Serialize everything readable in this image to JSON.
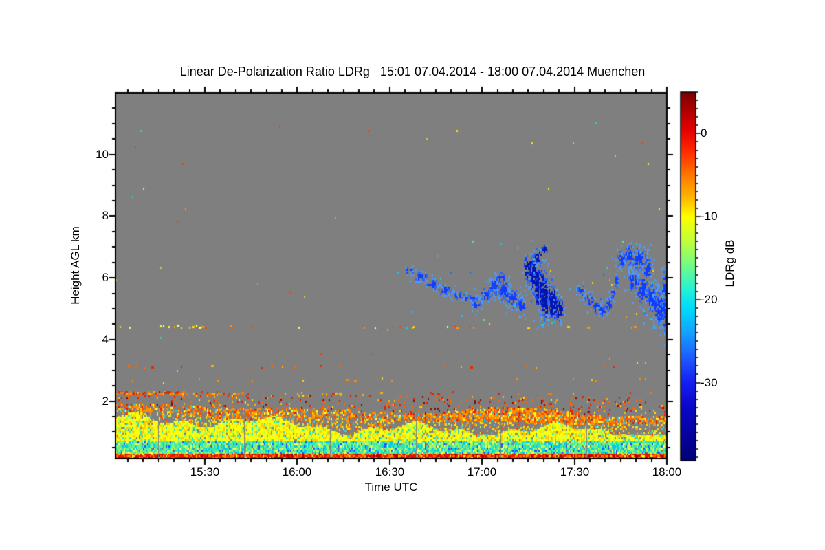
{
  "title": "Linear De-Polarization Ratio LDRg   15:01 07.04.2014 - 18:00 07.04.2014 Muenchen",
  "chart_data": {
    "type": "heatmap",
    "title": "Linear De-Polarization Ratio LDRg   15:01 07.04.2014 - 18:00 07.04.2014 Muenchen",
    "quantity": "Linear De-Polarization Ratio LDRg",
    "time_start": "15:01 07.04.2014",
    "time_end": "18:00 07.04.2014",
    "station": "Muenchen",
    "xlabel": "Time UTC",
    "ylabel": "Height AGL km",
    "colorbar_label": "LDRg dB",
    "x_minutes_range": [
      0,
      179
    ],
    "x_ticks": [
      {
        "t": 29,
        "label": "15:30"
      },
      {
        "t": 59,
        "label": "16:00"
      },
      {
        "t": 89,
        "label": "16:30"
      },
      {
        "t": 119,
        "label": "17:00"
      },
      {
        "t": 149,
        "label": "17:30"
      },
      {
        "t": 179,
        "label": "18:00"
      }
    ],
    "x_minor_tick_minutes": 5,
    "ylim_km": [
      0.14,
      12.0
    ],
    "y_ticks": [
      {
        "h": 2,
        "label": "2"
      },
      {
        "h": 4,
        "label": "4"
      },
      {
        "h": 6,
        "label": "6"
      },
      {
        "h": 8,
        "label": "8"
      },
      {
        "h": 10,
        "label": "10"
      }
    ],
    "y_minor_step_km": 0.5,
    "no_data_color": "#7f7f7f",
    "frame_color": "#000000",
    "colorbar": {
      "value_top": 5,
      "value_bottom": -39.4,
      "ticks": [
        {
          "v": 0,
          "label": "0"
        },
        {
          "v": -10,
          "label": "-10"
        },
        {
          "v": -20,
          "label": "-20"
        },
        {
          "v": -30,
          "label": "-30"
        }
      ],
      "minor_step_db": 1,
      "stops": [
        [
          5,
          "#7d0000"
        ],
        [
          0.5,
          "#e60000"
        ],
        [
          -2,
          "#ff2800"
        ],
        [
          -5,
          "#ff7800"
        ],
        [
          -8,
          "#ffbe00"
        ],
        [
          -10,
          "#ffff00"
        ],
        [
          -13,
          "#beff3c"
        ],
        [
          -16,
          "#6efa8c"
        ],
        [
          -19,
          "#1ef0dc"
        ],
        [
          -21,
          "#00dcfa"
        ],
        [
          -24,
          "#14a0ff"
        ],
        [
          -27,
          "#1e5aff"
        ],
        [
          -30,
          "#141ef0"
        ],
        [
          -33,
          "#0a05c8"
        ],
        [
          -39.4,
          "#000078"
        ]
      ]
    },
    "features": {
      "seed": 1337,
      "bands": [
        {
          "name": "ground-return-stripe",
          "h0": 0.17,
          "h1": 0.33,
          "density": 1.0,
          "palette": [
            [
              "#e61400",
              0.46
            ],
            [
              "#ff6e00",
              0.28
            ],
            [
              "#a00000",
              0.12
            ],
            [
              "#ffb400",
              0.08
            ],
            [
              "#ffff32",
              0.06
            ]
          ]
        },
        {
          "name": "surface-cyan-band",
          "h0": 0.33,
          "h1": 0.74,
          "density": 0.96,
          "palette": [
            [
              "#2ee6b4",
              0.26
            ],
            [
              "#6cf08c",
              0.26
            ],
            [
              "#b4fa50",
              0.18
            ],
            [
              "#00c8f0",
              0.16
            ],
            [
              "#ffff5a",
              0.08
            ],
            [
              "#2850ff",
              0.06
            ]
          ]
        },
        {
          "name": "boundary-layer-yellow",
          "h0": 0.74,
          "density": 0.93,
          "palette": [
            [
              "#ffff00",
              0.46
            ],
            [
              "#e6ff32",
              0.17
            ],
            [
              "#ffc800",
              0.17
            ],
            [
              "#a0ff5a",
              0.12
            ],
            [
              "#28dcc8",
              0.08
            ]
          ]
        },
        {
          "name": "transition-specks",
          "density": 0.3,
          "palette": [
            [
              "#ffe100",
              0.36
            ],
            [
              "#ff9600",
              0.3
            ],
            [
              "#c8f046",
              0.14
            ],
            [
              "#28d2dc",
              0.1
            ],
            [
              "#ff3c00",
              0.1
            ]
          ]
        },
        {
          "name": "elevated-orange-band",
          "density_left": 0.55,
          "density_right": 0.8,
          "palette": [
            [
              "#ff8c00",
              0.4
            ],
            [
              "#ff5000",
              0.22
            ],
            [
              "#ffc800",
              0.16
            ],
            [
              "#ffff32",
              0.08
            ],
            [
              "#dc1e00",
              0.08
            ],
            [
              "#28c8e6",
              0.06
            ]
          ]
        },
        {
          "name": "bl-top-specks",
          "density": 0.11,
          "palette": [
            [
              "#ff6400",
              0.33
            ],
            [
              "#e61e00",
              0.28
            ],
            [
              "#ffb400",
              0.16
            ],
            [
              "#8c0a00",
              0.13
            ],
            [
              "#ffe100",
              0.1
            ]
          ]
        }
      ],
      "bl_modulation": {
        "yellow_top_base": 1.42,
        "yellow_top_slope": -0.0028,
        "wiggles": [
          [
            0.17,
            7.5,
            1.2
          ],
          [
            0.1,
            2.4,
            5.0
          ],
          [
            0.07,
            19,
            0
          ]
        ],
        "band_center_base": 1.74,
        "band_center_slope": -0.002,
        "band_center_wiggles": [
          [
            0.06,
            23,
            2
          ],
          [
            0.05,
            9,
            0
          ]
        ],
        "band_halfwidth": [
          0.16,
          0.06,
          13,
          4
        ],
        "speck_top_base": 2.32,
        "speck_top_slope": -0.0012
      },
      "elevated_lines": [
        {
          "h": 2.27,
          "segments": [
            [
              0,
              22,
              0.85
            ],
            [
              22,
              42,
              0.35
            ],
            [
              42,
              179,
              0.05
            ]
          ],
          "palette": [
            [
              "#ff7800",
              0.5
            ],
            [
              "#e62800",
              0.3
            ],
            [
              "#ffb400",
              0.2
            ]
          ]
        }
      ],
      "speck_rows": [
        {
          "h": 4.42,
          "segments": [
            [
              0,
              40,
              0.13
            ],
            [
              40,
              95,
              0.07
            ],
            [
              95,
              179,
              0.04
            ]
          ],
          "palette": [
            [
              "#ff9600",
              0.4
            ],
            [
              "#ffd200",
              0.3
            ],
            [
              "#ff4600",
              0.15
            ],
            [
              "#ffff46",
              0.15
            ]
          ]
        },
        {
          "h": 3.12,
          "segments": [
            [
              0,
              25,
              0.12
            ],
            [
              25,
              80,
              0.08
            ],
            [
              80,
              125,
              0.05
            ],
            [
              125,
              179,
              0.025
            ]
          ],
          "palette": [
            [
              "#ff6400",
              0.5
            ],
            [
              "#e62800",
              0.3
            ],
            [
              "#ffb400",
              0.2
            ]
          ]
        },
        {
          "h": 2.7,
          "segments": [
            [
              0,
              45,
              0.05
            ],
            [
              45,
              179,
              0.02
            ]
          ],
          "palette": [
            [
              "#ff8c00",
              0.6
            ],
            [
              "#ffd200",
              0.4
            ]
          ]
        }
      ],
      "random_specks": {
        "h_range": [
          2.45,
          11.8
        ],
        "density": 0.0028,
        "palette": [
          [
            "#ffe100",
            0.3
          ],
          [
            "#ff9600",
            0.25
          ],
          [
            "#96e632",
            0.15
          ],
          [
            "#28d2c8",
            0.1
          ],
          [
            "#ff3c00",
            0.2
          ]
        ]
      },
      "cloud_specks": {
        "t_range": [
          88,
          179
        ],
        "h_range": [
          4.3,
          7.3
        ],
        "density": 0.007,
        "palette": [
          [
            "#19c8e6",
            0.4
          ],
          [
            "#2864ff",
            0.25
          ],
          [
            "#64e67d",
            0.2
          ],
          [
            "#ffd200",
            0.15
          ]
        ]
      },
      "cloud_colors": {
        "dark": "#0014b4",
        "core": "#0f3cff",
        "mid": "#2864ff",
        "light": "#4b9bff",
        "fringe": "#19d2dc"
      },
      "clouds": [
        {
          "name": "fallstreak-1",
          "density": 0.8,
          "dark": false,
          "ellipses": [
            [
              95,
              6.25,
              2.5,
              0.12
            ],
            [
              99,
              6.05,
              3,
              0.18
            ],
            [
              103,
              5.8,
              3,
              0.22
            ],
            [
              107,
              5.6,
              3,
              0.2
            ],
            [
              111,
              5.45,
              3,
              0.15
            ],
            [
              115,
              5.35,
              4,
              0.12
            ]
          ]
        },
        {
          "name": "patch-2",
          "density": 0.85,
          "dark": false,
          "ellipses": [
            [
              117,
              5.15,
              2,
              0.22
            ],
            [
              120,
              5.45,
              2.5,
              0.3
            ],
            [
              123,
              5.75,
              2.5,
              0.38
            ],
            [
              126,
              5.6,
              2.5,
              0.45
            ],
            [
              129,
              5.35,
              2.5,
              0.4
            ],
            [
              131.5,
              5.1,
              2,
              0.3
            ],
            [
              125,
              6.0,
              2,
              0.2
            ]
          ]
        },
        {
          "name": "patch-3-dense",
          "density": 0.95,
          "dark": true,
          "ellipses": [
            [
              134,
              6.3,
              2,
              0.5
            ],
            [
              136,
              6.1,
              2.5,
              0.7
            ],
            [
              138,
              5.6,
              2.5,
              0.9
            ],
            [
              140,
              5.3,
              2.5,
              0.8
            ],
            [
              142,
              5.2,
              2,
              0.6
            ],
            [
              144,
              5.0,
              1.7,
              0.4
            ],
            [
              137,
              6.7,
              1.4,
              0.3
            ],
            [
              139,
              6.9,
              1.1,
              0.2
            ]
          ]
        },
        {
          "name": "patch-4",
          "density": 0.8,
          "dark": false,
          "ellipses": [
            [
              151,
              5.6,
              1.8,
              0.25
            ],
            [
              153.5,
              5.3,
              2,
              0.3
            ],
            [
              156,
              5.05,
              2,
              0.3
            ],
            [
              158,
              4.95,
              1.8,
              0.28
            ],
            [
              160,
              5.15,
              1.5,
              0.3
            ],
            [
              161.5,
              5.5,
              1.2,
              0.3
            ],
            [
              162.5,
              5.9,
              1,
              0.25
            ]
          ]
        },
        {
          "name": "patch-5-large",
          "density": 0.9,
          "dark": false,
          "ellipses": [
            [
              164,
              6.6,
              2,
              0.35
            ],
            [
              167,
              6.75,
              2.5,
              0.45
            ],
            [
              170,
              6.6,
              2.5,
              0.5
            ],
            [
              172.5,
              6.3,
              2,
              0.45
            ],
            [
              168,
              5.9,
              2,
              0.4
            ],
            [
              171,
              5.6,
              2.5,
              0.55
            ],
            [
              174,
              5.3,
              2.8,
              0.65
            ],
            [
              176.5,
              5.05,
              2.5,
              0.7
            ],
            [
              178.5,
              4.9,
              2.2,
              0.8
            ],
            [
              178.5,
              5.7,
              1.8,
              0.7
            ]
          ]
        }
      ]
    }
  }
}
